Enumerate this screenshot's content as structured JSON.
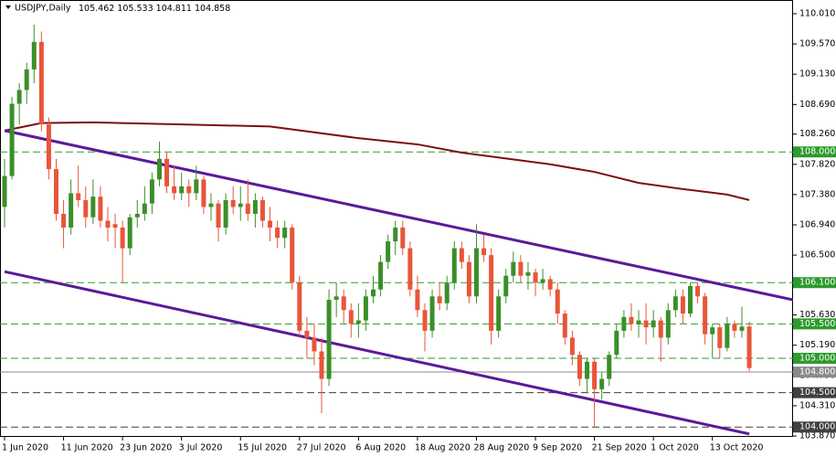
{
  "chart_data": {
    "type": "candlestick",
    "title": "USDJPY,Daily",
    "categories": [
      "1 Jun 2020",
      null,
      null,
      null,
      null,
      null,
      null,
      null,
      "11 Jun 2020",
      null,
      null,
      null,
      null,
      null,
      null,
      null,
      "23 Jun 2020",
      null,
      null,
      null,
      null,
      null,
      null,
      null,
      "3 Jul 2020",
      null,
      null,
      null,
      null,
      null,
      null,
      null,
      "15 Jul 2020",
      null,
      null,
      null,
      null,
      null,
      null,
      null,
      "27 Jul 2020",
      null,
      null,
      null,
      null,
      null,
      null,
      null,
      "6 Aug 2020",
      null,
      null,
      null,
      null,
      null,
      null,
      null,
      "18 Aug 2020",
      null,
      null,
      null,
      null,
      null,
      null,
      null,
      "28 Aug 2020",
      null,
      null,
      null,
      null,
      null,
      null,
      null,
      "9 Sep 2020",
      null,
      null,
      null,
      null,
      null,
      null,
      null,
      "21 Sep 2020",
      null,
      null,
      null,
      null,
      null,
      null,
      null,
      "1 Oct 2020",
      null,
      null,
      null,
      null,
      null,
      null,
      null,
      "13 Oct 2020",
      null,
      null,
      null,
      null,
      null
    ],
    "candles": [
      [
        107.2,
        107.9,
        106.9,
        107.65
      ],
      [
        107.65,
        108.8,
        107.6,
        108.7
      ],
      [
        108.7,
        109.0,
        108.4,
        108.9
      ],
      [
        108.9,
        109.3,
        108.7,
        109.2
      ],
      [
        109.2,
        109.85,
        109.0,
        109.6
      ],
      [
        109.6,
        109.75,
        108.3,
        108.4
      ],
      [
        108.4,
        108.5,
        107.6,
        107.75
      ],
      [
        107.75,
        107.9,
        107.0,
        107.1
      ],
      [
        107.1,
        107.3,
        106.6,
        106.9
      ],
      [
        106.9,
        107.6,
        106.8,
        107.4
      ],
      [
        107.4,
        107.8,
        107.2,
        107.3
      ],
      [
        107.3,
        107.5,
        106.9,
        107.05
      ],
      [
        107.05,
        107.6,
        106.95,
        107.35
      ],
      [
        107.35,
        107.5,
        106.9,
        107.0
      ],
      [
        107.0,
        107.2,
        106.7,
        106.9
      ],
      [
        106.95,
        107.1,
        106.6,
        106.9
      ],
      [
        106.9,
        107.0,
        106.1,
        106.6
      ],
      [
        106.6,
        107.1,
        106.5,
        107.05
      ],
      [
        107.05,
        107.3,
        106.9,
        107.1
      ],
      [
        107.1,
        107.5,
        107.0,
        107.25
      ],
      [
        107.25,
        107.7,
        107.1,
        107.6
      ],
      [
        107.6,
        108.15,
        107.5,
        107.9
      ],
      [
        107.9,
        108.0,
        107.4,
        107.5
      ],
      [
        107.5,
        107.8,
        107.3,
        107.4
      ],
      [
        107.4,
        107.7,
        107.3,
        107.5
      ],
      [
        107.5,
        107.6,
        107.2,
        107.4
      ],
      [
        107.4,
        107.8,
        107.3,
        107.6
      ],
      [
        107.6,
        107.65,
        107.1,
        107.2
      ],
      [
        107.2,
        107.4,
        107.0,
        107.25
      ],
      [
        107.25,
        107.3,
        106.7,
        106.9
      ],
      [
        106.9,
        107.4,
        106.8,
        107.3
      ],
      [
        107.3,
        107.5,
        107.1,
        107.2
      ],
      [
        107.2,
        107.5,
        107.0,
        107.25
      ],
      [
        107.25,
        107.6,
        107.0,
        107.1
      ],
      [
        107.1,
        107.4,
        106.9,
        107.3
      ],
      [
        107.3,
        107.35,
        106.9,
        107.0
      ],
      [
        107.0,
        107.2,
        106.7,
        106.9
      ],
      [
        106.9,
        107.0,
        106.6,
        106.75
      ],
      [
        106.75,
        107.0,
        106.6,
        106.9
      ],
      [
        106.9,
        106.95,
        106.0,
        106.1
      ],
      [
        106.1,
        106.2,
        105.3,
        105.4
      ],
      [
        105.4,
        105.6,
        105.0,
        105.3
      ],
      [
        105.3,
        105.5,
        104.9,
        105.1
      ],
      [
        105.1,
        105.3,
        104.2,
        104.7
      ],
      [
        104.7,
        106.0,
        104.6,
        105.85
      ],
      [
        105.85,
        106.1,
        105.6,
        105.9
      ],
      [
        105.9,
        106.0,
        105.5,
        105.7
      ],
      [
        105.7,
        105.8,
        105.3,
        105.5
      ],
      [
        105.5,
        105.8,
        105.3,
        105.55
      ],
      [
        105.55,
        106.0,
        105.4,
        105.9
      ],
      [
        105.9,
        106.2,
        105.8,
        106.0
      ],
      [
        106.0,
        106.5,
        105.9,
        106.4
      ],
      [
        106.4,
        106.8,
        106.3,
        106.7
      ],
      [
        106.7,
        107.0,
        106.5,
        106.9
      ],
      [
        106.9,
        107.0,
        106.5,
        106.6
      ],
      [
        106.6,
        106.7,
        105.9,
        106.0
      ],
      [
        106.0,
        106.2,
        105.6,
        105.7
      ],
      [
        105.7,
        105.8,
        105.1,
        105.4
      ],
      [
        105.4,
        106.0,
        105.3,
        105.9
      ],
      [
        105.9,
        106.1,
        105.7,
        105.8
      ],
      [
        105.8,
        106.2,
        105.7,
        106.1
      ],
      [
        106.1,
        106.7,
        106.0,
        106.6
      ],
      [
        106.6,
        106.7,
        106.3,
        106.4
      ],
      [
        106.4,
        106.5,
        105.8,
        105.9
      ],
      [
        105.9,
        106.95,
        105.8,
        106.6
      ],
      [
        106.6,
        106.8,
        106.4,
        106.5
      ],
      [
        106.5,
        106.6,
        105.2,
        105.4
      ],
      [
        105.4,
        106.0,
        105.3,
        105.9
      ],
      [
        105.9,
        106.3,
        105.8,
        106.2
      ],
      [
        106.2,
        106.55,
        106.1,
        106.4
      ],
      [
        106.4,
        106.5,
        106.1,
        106.2
      ],
      [
        106.2,
        106.4,
        106.0,
        106.25
      ],
      [
        106.25,
        106.3,
        105.9,
        106.1
      ],
      [
        106.1,
        106.3,
        106.0,
        106.15
      ],
      [
        106.15,
        106.2,
        105.9,
        106.0
      ],
      [
        106.0,
        106.1,
        105.5,
        105.65
      ],
      [
        105.65,
        105.7,
        105.2,
        105.3
      ],
      [
        105.3,
        105.4,
        104.9,
        105.05
      ],
      [
        105.05,
        105.1,
        104.6,
        104.7
      ],
      [
        104.7,
        105.0,
        104.5,
        104.95
      ],
      [
        104.95,
        105.0,
        104.0,
        104.55
      ],
      [
        104.55,
        104.8,
        104.4,
        104.7
      ],
      [
        104.7,
        105.1,
        104.6,
        105.05
      ],
      [
        105.05,
        105.5,
        105.0,
        105.4
      ],
      [
        105.4,
        105.7,
        105.3,
        105.6
      ],
      [
        105.6,
        105.8,
        105.4,
        105.5
      ],
      [
        105.5,
        105.7,
        105.3,
        105.55
      ],
      [
        105.55,
        105.8,
        105.2,
        105.45
      ],
      [
        105.45,
        105.7,
        105.3,
        105.55
      ],
      [
        105.55,
        105.6,
        104.95,
        105.3
      ],
      [
        105.3,
        105.8,
        105.2,
        105.7
      ],
      [
        105.7,
        106.0,
        105.6,
        105.9
      ],
      [
        105.9,
        106.0,
        105.5,
        105.65
      ],
      [
        105.65,
        106.1,
        105.6,
        106.05
      ],
      [
        106.05,
        106.1,
        105.8,
        105.9
      ],
      [
        105.9,
        105.95,
        105.2,
        105.35
      ],
      [
        105.35,
        105.5,
        105.0,
        105.45
      ],
      [
        105.45,
        105.5,
        105.0,
        105.15
      ],
      [
        105.15,
        105.6,
        105.1,
        105.5
      ],
      [
        105.5,
        105.55,
        105.3,
        105.4
      ],
      [
        105.4,
        105.75,
        105.3,
        105.46
      ],
      [
        105.462,
        105.533,
        104.811,
        104.858
      ]
    ],
    "up_color": "#3a8f2a",
    "down_color": "#e8553a",
    "moving_average": {
      "color": "#7a1010",
      "x": [
        0,
        5,
        12,
        24,
        36,
        48,
        56,
        62,
        74,
        80,
        86,
        92,
        98,
        101
      ],
      "values": [
        108.31,
        108.42,
        108.43,
        108.4,
        108.37,
        108.2,
        108.11,
        107.99,
        107.82,
        107.71,
        107.55,
        107.46,
        107.38,
        107.3
      ]
    },
    "trend_lines": [
      {
        "color": "#5a1a9a",
        "x": [
          0,
          106.94
        ],
        "values": [
          108.31,
          105.85
        ]
      },
      {
        "color": "#5a1a9a",
        "x": [
          0,
          101
        ],
        "values": [
          106.26,
          103.9
        ]
      }
    ],
    "levels": [
      {
        "value": 108.0,
        "label": "108.000",
        "color": "#2e9a2e"
      },
      {
        "value": 106.1,
        "label": "106.100",
        "color": "#2e9a2e"
      },
      {
        "value": 105.5,
        "label": "105.500",
        "color": "#2e9a2e"
      },
      {
        "value": 105.0,
        "label": "105.000",
        "color": "#2e9a2e"
      },
      {
        "value": 104.8,
        "label": "104.800",
        "color": "#8a8a8a"
      },
      {
        "value": 104.5,
        "label": "104.500",
        "color": "#404040"
      },
      {
        "value": 104.0,
        "label": "104.000",
        "color": "#404040"
      }
    ],
    "xlim": [
      -0.62,
      106.94
    ],
    "ylim": [
      103.857,
      110.209
    ],
    "yticks": [
      {
        "value": 110.01,
        "label": "110.010"
      },
      {
        "value": 109.57,
        "label": "109.570"
      },
      {
        "value": 109.13,
        "label": "109.130"
      },
      {
        "value": 108.69,
        "label": "108.690"
      },
      {
        "value": 108.26,
        "label": "108.260"
      },
      {
        "value": 107.82,
        "label": "107.820"
      },
      {
        "value": 107.38,
        "label": "107.380"
      },
      {
        "value": 106.94,
        "label": "106.940"
      },
      {
        "value": 106.5,
        "label": "106.500"
      },
      {
        "value": 106.06,
        "label": "106.060"
      },
      {
        "value": 105.63,
        "label": "105.630"
      },
      {
        "value": 105.19,
        "label": "105.190"
      },
      {
        "value": 104.75,
        "label": "104.750"
      },
      {
        "value": 104.31,
        "label": "104.310"
      },
      {
        "value": 103.87,
        "label": "103.870"
      }
    ]
  }
}
